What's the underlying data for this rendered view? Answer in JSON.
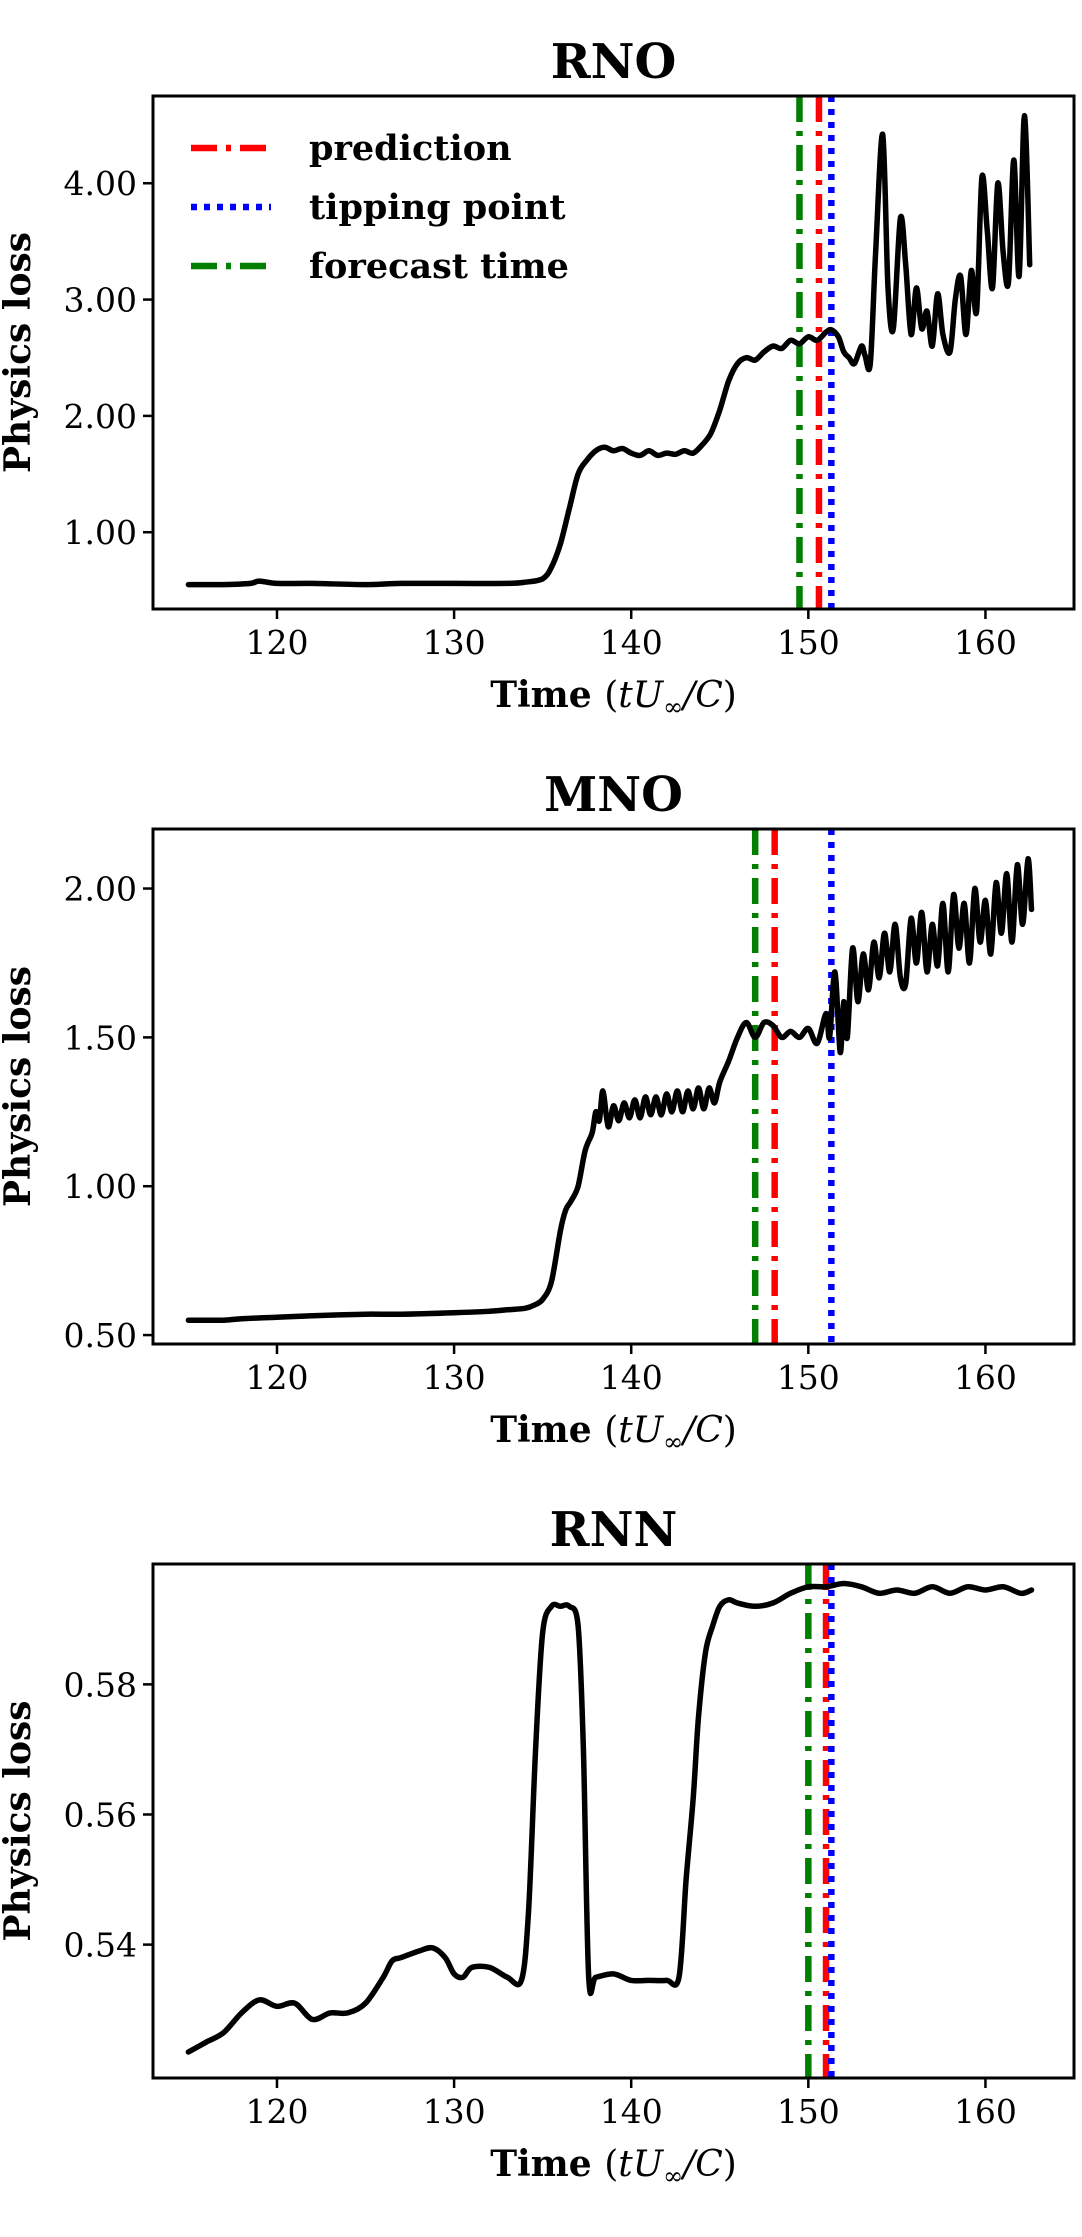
{
  "chart_data": [
    {
      "type": "line",
      "title": "RNO",
      "xlabel": "Time (tU∞/C)",
      "ylabel": "Physics loss",
      "xlim": [
        113,
        165
      ],
      "ylim": [
        0.34,
        4.75
      ],
      "xticks": [
        120,
        130,
        140,
        150,
        160
      ],
      "xtick_labels": [
        "120",
        "130",
        "140",
        "150",
        "160"
      ],
      "yticks": [
        1.0,
        2.0,
        3.0,
        4.0
      ],
      "ytick_labels": [
        "1.00",
        "2.00",
        "3.00",
        "4.00"
      ],
      "legend": {
        "position": "top-left",
        "entries": [
          {
            "label": "prediction",
            "color": "#ff0000",
            "style": "dashdot"
          },
          {
            "label": "tipping point",
            "color": "#0000ff",
            "style": "dotted"
          },
          {
            "label": "forecast time",
            "color": "#007f00",
            "style": "dashdot"
          }
        ]
      },
      "vlines": {
        "forecast": 149.5,
        "prediction": 150.6,
        "tipping": 151.3
      },
      "series": [
        {
          "name": "loss",
          "color": "#000000",
          "x": [
            115,
            117,
            118.5,
            119,
            120,
            122,
            125,
            127,
            130,
            133,
            134,
            135,
            135.5,
            136,
            136.5,
            137,
            137.5,
            138,
            138.5,
            139,
            139.5,
            140,
            140.5,
            141,
            141.5,
            142,
            142.5,
            143,
            143.5,
            144,
            144.5,
            145,
            145.5,
            146,
            146.5,
            147,
            147.5,
            148,
            148.5,
            149,
            149.5,
            150,
            150.5,
            151,
            151.3,
            151.7,
            152,
            152.3,
            152.6,
            153,
            153.2,
            153.5,
            153.8,
            154.2,
            154.5,
            154.8,
            155.2,
            155.5,
            155.8,
            156.1,
            156.4,
            156.7,
            157,
            157.3,
            157.6,
            158,
            158.3,
            158.6,
            158.9,
            159.2,
            159.5,
            159.8,
            160.1,
            160.4,
            160.7,
            161,
            161.3,
            161.6,
            161.9,
            162.2,
            162.5
          ],
          "y": [
            0.55,
            0.55,
            0.56,
            0.58,
            0.56,
            0.56,
            0.55,
            0.56,
            0.56,
            0.56,
            0.57,
            0.6,
            0.7,
            0.9,
            1.2,
            1.5,
            1.62,
            1.7,
            1.73,
            1.7,
            1.72,
            1.68,
            1.66,
            1.7,
            1.66,
            1.68,
            1.67,
            1.7,
            1.68,
            1.75,
            1.85,
            2.05,
            2.3,
            2.45,
            2.5,
            2.48,
            2.55,
            2.6,
            2.58,
            2.65,
            2.62,
            2.68,
            2.65,
            2.72,
            2.74,
            2.68,
            2.55,
            2.5,
            2.45,
            2.6,
            2.52,
            2.45,
            3.4,
            4.42,
            3.1,
            2.75,
            3.7,
            3.3,
            2.7,
            3.1,
            2.75,
            2.9,
            2.6,
            3.05,
            2.7,
            2.55,
            3.0,
            3.2,
            2.7,
            3.25,
            2.9,
            4.05,
            3.6,
            3.1,
            4.0,
            3.4,
            3.15,
            4.2,
            3.2,
            4.58,
            3.3
          ],
          "smooth": true
        }
      ]
    },
    {
      "type": "line",
      "title": "MNO",
      "xlabel": "Time (tU∞/C)",
      "ylabel": "Physics loss",
      "xlim": [
        113,
        165
      ],
      "ylim": [
        0.47,
        2.2
      ],
      "xticks": [
        120,
        130,
        140,
        150,
        160
      ],
      "xtick_labels": [
        "120",
        "130",
        "140",
        "150",
        "160"
      ],
      "yticks": [
        0.5,
        1.0,
        1.5,
        2.0
      ],
      "ytick_labels": [
        "0.50",
        "1.00",
        "1.50",
        "2.00"
      ],
      "vlines": {
        "forecast": 147.0,
        "prediction": 148.1,
        "tipping": 151.3
      },
      "series": [
        {
          "name": "loss",
          "color": "#000000",
          "x": [
            115,
            116,
            117,
            118,
            120,
            122,
            125,
            127,
            130,
            132,
            133,
            134,
            134.5,
            135,
            135.5,
            136,
            136.3,
            136.6,
            137,
            137.4,
            137.8,
            138,
            138.2,
            138.4,
            138.7,
            139,
            139.3,
            139.6,
            139.9,
            140.2,
            140.5,
            140.8,
            141.1,
            141.4,
            141.7,
            142,
            142.3,
            142.6,
            142.9,
            143.2,
            143.5,
            143.8,
            144.1,
            144.4,
            144.7,
            145,
            145.5,
            146,
            146.5,
            147,
            147.5,
            148,
            148.5,
            149,
            149.5,
            150,
            150.5,
            151,
            151.2,
            151.5,
            151.8,
            152,
            152.2,
            152.5,
            152.8,
            153.1,
            153.4,
            153.7,
            154,
            154.3,
            154.6,
            154.9,
            155.2,
            155.5,
            155.8,
            156.1,
            156.4,
            156.7,
            157,
            157.3,
            157.6,
            157.9,
            158.2,
            158.5,
            158.8,
            159.1,
            159.4,
            159.7,
            160,
            160.3,
            160.6,
            160.9,
            161.2,
            161.5,
            161.8,
            162.1,
            162.4,
            162.6
          ],
          "y": [
            0.55,
            0.55,
            0.55,
            0.555,
            0.56,
            0.565,
            0.57,
            0.57,
            0.575,
            0.58,
            0.585,
            0.59,
            0.6,
            0.62,
            0.68,
            0.85,
            0.92,
            0.95,
            1.0,
            1.12,
            1.18,
            1.25,
            1.22,
            1.32,
            1.2,
            1.27,
            1.22,
            1.28,
            1.23,
            1.29,
            1.23,
            1.3,
            1.24,
            1.3,
            1.24,
            1.31,
            1.25,
            1.32,
            1.25,
            1.32,
            1.26,
            1.33,
            1.26,
            1.33,
            1.28,
            1.35,
            1.42,
            1.5,
            1.55,
            1.5,
            1.55,
            1.54,
            1.5,
            1.52,
            1.5,
            1.53,
            1.48,
            1.58,
            1.5,
            1.72,
            1.45,
            1.62,
            1.5,
            1.8,
            1.62,
            1.78,
            1.66,
            1.82,
            1.7,
            1.85,
            1.72,
            1.88,
            1.7,
            1.68,
            1.9,
            1.75,
            1.92,
            1.72,
            1.88,
            1.74,
            1.95,
            1.72,
            1.98,
            1.8,
            1.95,
            1.75,
            2.0,
            1.82,
            1.96,
            1.78,
            2.02,
            1.85,
            2.05,
            1.82,
            2.08,
            1.88,
            2.1,
            1.93
          ],
          "smooth": true
        }
      ]
    },
    {
      "type": "line",
      "title": "RNN",
      "xlabel": "Time (tU∞/C)",
      "ylabel": "Physics loss",
      "xlim": [
        113,
        165
      ],
      "ylim": [
        0.5195,
        0.5985
      ],
      "xticks": [
        120,
        130,
        140,
        150,
        160
      ],
      "xtick_labels": [
        "120",
        "130",
        "140",
        "150",
        "160"
      ],
      "yticks": [
        0.54,
        0.56,
        0.58
      ],
      "ytick_labels": [
        "0.54",
        "0.56",
        "0.58"
      ],
      "vlines": {
        "forecast": 150.0,
        "prediction": 151.0,
        "tipping": 151.3
      },
      "series": [
        {
          "name": "loss",
          "color": "#000000",
          "x": [
            115,
            116,
            117,
            118,
            119,
            120,
            121,
            122,
            123,
            124,
            125,
            126,
            126.5,
            127,
            128,
            128.8,
            129.5,
            130,
            130.5,
            131,
            132,
            133,
            133.8,
            134.2,
            134.6,
            135,
            135.5,
            136,
            136.5,
            137,
            137.3,
            137.6,
            138,
            139,
            140,
            141,
            142,
            142.7,
            143.1,
            143.5,
            143.8,
            144.2,
            144.6,
            145,
            145.5,
            146,
            147,
            148,
            149,
            150,
            151,
            152,
            153,
            154,
            155,
            156,
            157,
            158,
            159,
            160,
            161,
            162,
            162.6
          ],
          "y": [
            0.5235,
            0.525,
            0.5265,
            0.5295,
            0.5315,
            0.5305,
            0.531,
            0.5285,
            0.5295,
            0.5295,
            0.531,
            0.535,
            0.5375,
            0.538,
            0.539,
            0.5395,
            0.538,
            0.5355,
            0.535,
            0.5365,
            0.5365,
            0.535,
            0.5345,
            0.545,
            0.57,
            0.588,
            0.592,
            0.592,
            0.592,
            0.589,
            0.57,
            0.535,
            0.535,
            0.5355,
            0.5345,
            0.5345,
            0.5345,
            0.535,
            0.55,
            0.5625,
            0.575,
            0.585,
            0.589,
            0.592,
            0.593,
            0.5925,
            0.592,
            0.5925,
            0.594,
            0.595,
            0.595,
            0.5955,
            0.595,
            0.594,
            0.5945,
            0.594,
            0.595,
            0.594,
            0.595,
            0.5945,
            0.595,
            0.594,
            0.5945
          ],
          "smooth": true
        }
      ]
    }
  ]
}
